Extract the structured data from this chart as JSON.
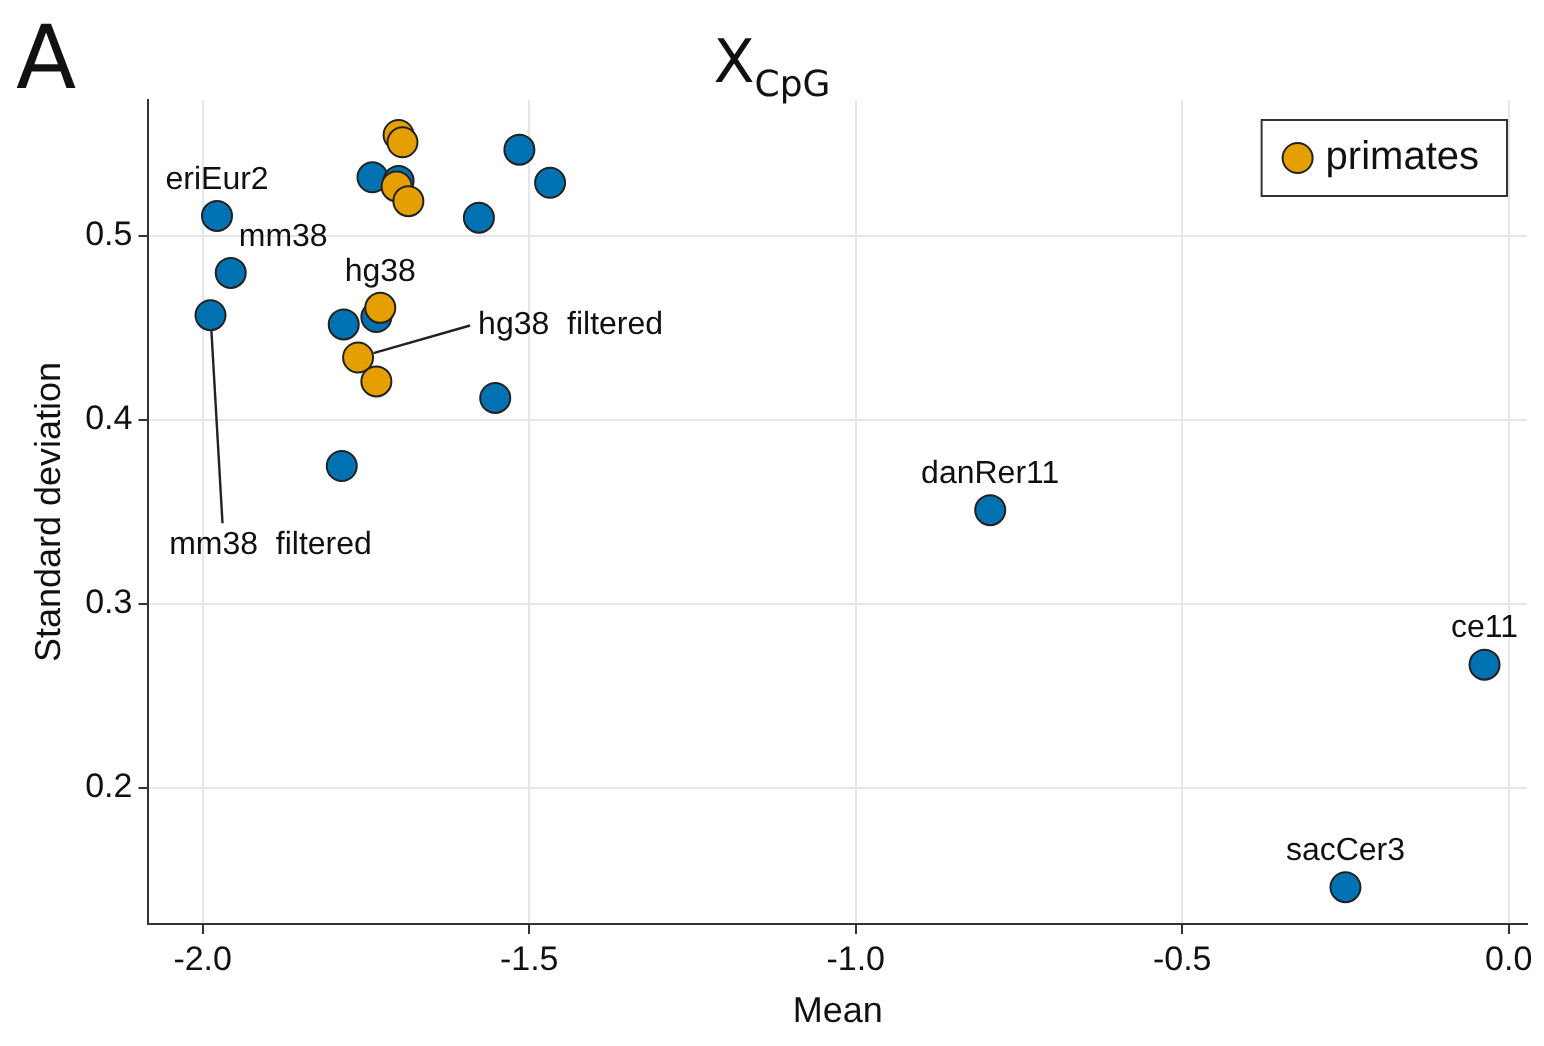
{
  "chart_data": {
    "type": "scatter",
    "title": "X$_{CpG}$",
    "xlabel": "Mean",
    "ylabel": "Standard deviation",
    "xlim": [
      -2.083,
      0.028
    ],
    "xticks": [
      {
        "value": -2,
        "label": "-2.0"
      },
      {
        "value": -1.5,
        "label": "-1.5"
      },
      {
        "value": -1,
        "label": "-1.0"
      },
      {
        "value": -0.5,
        "label": "-0.5"
      },
      {
        "value": 0,
        "label": "0.0"
      }
    ],
    "ylim": [
      0.126,
      0.574
    ],
    "yticks": [
      {
        "value": 0.2,
        "label": "0.2"
      },
      {
        "value": 0.3,
        "label": "0.3"
      },
      {
        "value": 0.4,
        "label": "0.4"
      },
      {
        "value": 0.5,
        "label": "0.5"
      }
    ],
    "grid": true,
    "legend": "top right",
    "marker": "circle",
    "series": [
      {
        "color": "#0072b2",
        "x": [
          -1.978,
          -1.957,
          -1.988,
          -1.787,
          -1.784,
          -1.74,
          -1.734,
          -1.7,
          -1.577,
          -1.515,
          -1.468,
          -1.552,
          -0.794,
          -0.037,
          -0.25
        ],
        "values": [
          0.511,
          0.48,
          0.457,
          0.375,
          0.452,
          0.532,
          0.456,
          0.53,
          0.51,
          0.547,
          0.529,
          0.412,
          0.351,
          0.267,
          0.146
        ]
      },
      {
        "name": "primates",
        "color": "#e69f00",
        "x": [
          -1.7,
          -1.694,
          -1.703,
          -1.685,
          -1.728,
          -1.762,
          -1.734
        ],
        "values": [
          0.555,
          0.551,
          0.527,
          0.519,
          0.461,
          0.434,
          0.421
        ]
      }
    ],
    "annotations": [
      "A",
      {
        "text": "eriEur2",
        "x": -1.978,
        "y": 0.511
      },
      {
        "text": "mm38",
        "x": -1.957,
        "y": 0.48
      },
      {
        "text": "hg38",
        "x": -1.728,
        "y": 0.461
      },
      {
        "text": "hg38  filtered",
        "x": -1.762,
        "y": 0.434
      },
      {
        "text": "mm38  filtered",
        "x": -1.988,
        "y": 0.457
      },
      {
        "text": "danRer11",
        "x": -0.794,
        "y": 0.351
      },
      {
        "text": "ce11",
        "x": -0.037,
        "y": 0.267
      },
      {
        "text": "sacCer3",
        "x": -0.25,
        "y": 0.146
      }
    ]
  }
}
